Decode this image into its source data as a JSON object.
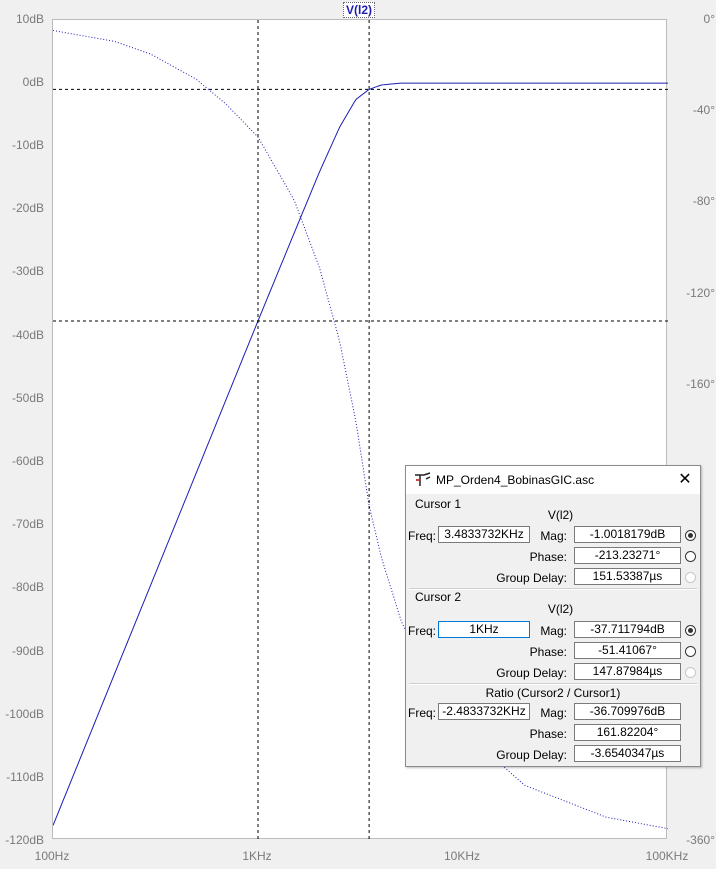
{
  "plot": {
    "trace_label": "V(l2)",
    "left_ticks": [
      "10dB",
      "0dB",
      "-10dB",
      "-20dB",
      "-30dB",
      "-40dB",
      "-50dB",
      "-60dB",
      "-70dB",
      "-80dB",
      "-90dB",
      "-100dB",
      "-110dB",
      "-120dB"
    ],
    "right_ticks": [
      "0°",
      "-40°",
      "-80°",
      "-120°",
      "-160°",
      "-360°"
    ],
    "bottom_ticks": [
      "100Hz",
      "1KHz",
      "10KHz",
      "100KHz"
    ]
  },
  "chart_data": {
    "type": "line",
    "x_scale": "log",
    "xlim_hz": [
      100,
      100000
    ],
    "ylim_left_db": [
      -120,
      10
    ],
    "ylim_right_deg": [
      -360,
      0
    ],
    "series": [
      {
        "name": "V(l2)",
        "quantity": "magnitude_db",
        "style": "solid",
        "color": "#1c1cb4",
        "x": [
          100,
          200,
          500,
          1000,
          1500,
          2000,
          2500,
          3000,
          3483,
          4000,
          5000,
          10000,
          100000
        ],
        "y": [
          -117.7,
          -93.6,
          -61.8,
          -37.7,
          -23.8,
          -14.0,
          -7.0,
          -2.6,
          -1.0,
          -0.3,
          0,
          0,
          0
        ]
      },
      {
        "name": "V(l2)",
        "quantity": "phase_deg",
        "style": "dotted",
        "color": "#1c1cb4",
        "x": [
          100,
          200,
          300,
          500,
          700,
          1000,
          1500,
          2000,
          2500,
          3000,
          3483,
          4000,
          5000,
          7000,
          10000,
          20000,
          50000,
          100000
        ],
        "y": [
          -4.6,
          -9.4,
          -15,
          -26,
          -37,
          -51.4,
          -79,
          -109,
          -141,
          -176,
          -213.2,
          -236,
          -264,
          -292,
          -312,
          -336,
          -350,
          -355
        ]
      }
    ],
    "cursors": [
      {
        "name": "Cursor 1",
        "x": 3483.3732,
        "y": -1.0018179,
        "style": "dashed"
      },
      {
        "name": "Cursor 2",
        "x": 1000,
        "y": -37.711794,
        "style": "dashed"
      }
    ],
    "grid": false
  },
  "cursor_window": {
    "title": "MP_Orden4_BobinasGIC.asc",
    "close_glyph": "✕",
    "cursor1": {
      "header": "Cursor 1",
      "trace": "V(l2)",
      "freq_label": "Freq:",
      "freq": "3.4833732KHz",
      "mag_label": "Mag:",
      "mag": "-1.0018179dB",
      "phase_label": "Phase:",
      "phase": "-213.23271°",
      "gd_label": "Group Delay:",
      "gd": "151.53387µs"
    },
    "cursor2": {
      "header": "Cursor 2",
      "trace": "V(l2)",
      "freq_label": "Freq:",
      "freq": "1KHz",
      "mag_label": "Mag:",
      "mag": "-37.711794dB",
      "phase_label": "Phase:",
      "phase": "-51.41067°",
      "gd_label": "Group Delay:",
      "gd": "147.87984µs"
    },
    "ratio": {
      "header": "Ratio (Cursor2 / Cursor1)",
      "freq_label": "Freq:",
      "freq": "-2.4833732KHz",
      "mag_label": "Mag:",
      "mag": "-36.709976dB",
      "phase_label": "Phase:",
      "phase": "161.82204°",
      "gd_label": "Group Delay:",
      "gd": "-3.6540347µs"
    }
  }
}
